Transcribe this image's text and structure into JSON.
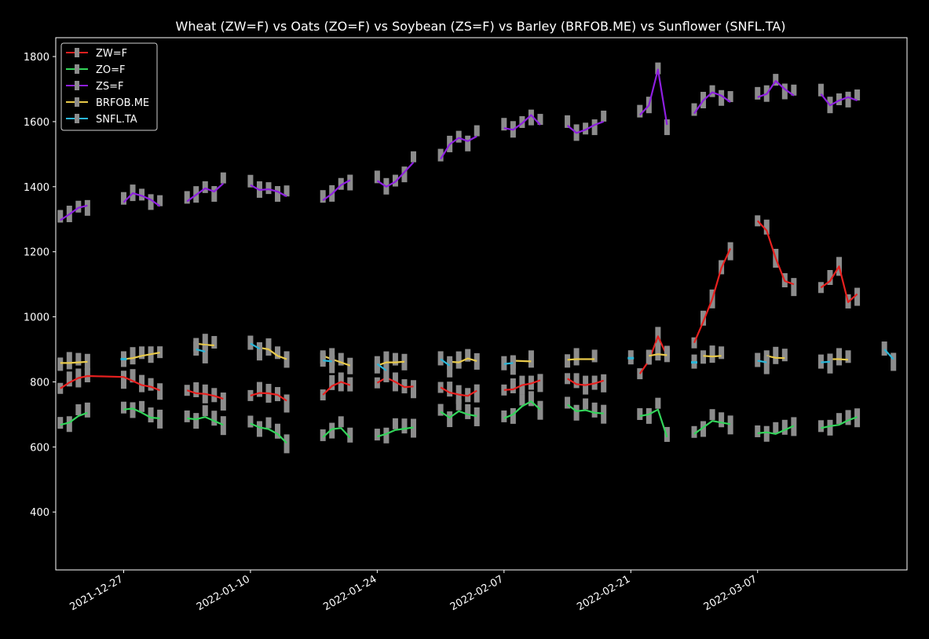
{
  "chart_data": {
    "type": "line",
    "title": "Wheat (ZW=F) vs Oats (ZO=F) vs Soybean (ZS=F) vs Barley (BRFOB.ME) vs Sunflower (SNFL.TA)",
    "xlabel": "",
    "ylabel": "",
    "ylim": [
      222,
      1858
    ],
    "y_ticks": [
      400,
      600,
      800,
      1000,
      1200,
      1400,
      1600,
      1800
    ],
    "x_ticks": [
      "2021-12-27",
      "2022-01-10",
      "2022-01-24",
      "2022-02-07",
      "2022-02-21",
      "2022-03-07"
    ],
    "legend_position": "top-left",
    "grid": false,
    "background": "#000000",
    "series": [
      {
        "name": "ZW=F",
        "color": "#e8201f",
        "points": [
          [
            "2021-12-20",
            780
          ],
          [
            "2021-12-21",
            798
          ],
          [
            "2021-12-22",
            812
          ],
          [
            "2021-12-23",
            818
          ],
          [
            "2021-12-27",
            815
          ],
          [
            "2021-12-28",
            803
          ],
          [
            "2021-12-29",
            790
          ],
          [
            "2021-12-30",
            785
          ],
          [
            "2021-12-31",
            774
          ],
          null,
          [
            "2022-01-03",
            774
          ],
          [
            "2022-01-04",
            765
          ],
          [
            "2022-01-05",
            763
          ],
          [
            "2022-01-06",
            757
          ],
          [
            "2022-01-07",
            748
          ],
          null,
          [
            "2022-01-10",
            758
          ],
          [
            "2022-01-11",
            766
          ],
          [
            "2022-01-12",
            765
          ],
          [
            "2022-01-13",
            760
          ],
          [
            "2022-01-14",
            742
          ],
          null,
          [
            "2022-01-18",
            760
          ],
          [
            "2022-01-19",
            787
          ],
          [
            "2022-01-20",
            800
          ],
          [
            "2022-01-21",
            790
          ],
          null,
          [
            "2022-01-24",
            797
          ],
          [
            "2022-01-25",
            813
          ],
          [
            "2022-01-26",
            800
          ],
          [
            "2022-01-27",
            784
          ],
          [
            "2022-01-28",
            786
          ],
          null,
          [
            "2022-01-31",
            783
          ],
          [
            "2022-02-01",
            767
          ],
          [
            "2022-02-02",
            761
          ],
          [
            "2022-02-03",
            757
          ],
          [
            "2022-02-04",
            773
          ],
          null,
          [
            "2022-02-07",
            775
          ],
          [
            "2022-02-08",
            777
          ],
          [
            "2022-02-09",
            790
          ],
          [
            "2022-02-10",
            795
          ],
          [
            "2022-02-11",
            805
          ],
          null,
          [
            "2022-02-14",
            810
          ],
          [
            "2022-02-15",
            793
          ],
          [
            "2022-02-16",
            790
          ],
          [
            "2022-02-17",
            795
          ],
          [
            "2022-02-18",
            804
          ],
          null,
          [
            "2022-02-22",
            825
          ],
          [
            "2022-02-23",
            865
          ],
          [
            "2022-02-24",
            940
          ],
          [
            "2022-02-25",
            880
          ],
          null,
          [
            "2022-02-28",
            920
          ],
          [
            "2022-03-01",
            985
          ],
          [
            "2022-03-02",
            1055
          ],
          [
            "2022-03-03",
            1150
          ],
          [
            "2022-03-04",
            1210
          ],
          null,
          [
            "2022-03-07",
            1295
          ],
          [
            "2022-03-08",
            1265
          ],
          [
            "2022-03-09",
            1180
          ],
          [
            "2022-03-10",
            1110
          ],
          [
            "2022-03-11",
            1100
          ],
          null,
          [
            "2022-03-14",
            1090
          ],
          [
            "2022-03-15",
            1110
          ],
          [
            "2022-03-16",
            1155
          ],
          [
            "2022-03-17",
            1045
          ],
          [
            "2022-03-18",
            1070
          ]
        ]
      },
      {
        "name": "ZO=F",
        "color": "#33d45a",
        "points": [
          [
            "2021-12-20",
            668
          ],
          [
            "2021-12-21",
            675
          ],
          [
            "2021-12-22",
            695
          ],
          [
            "2021-12-23",
            705
          ],
          null,
          [
            "2021-12-27",
            715
          ],
          [
            "2021-12-28",
            718
          ],
          [
            "2021-12-29",
            705
          ],
          [
            "2021-12-30",
            690
          ],
          [
            "2021-12-31",
            688
          ],
          null,
          [
            "2022-01-03",
            688
          ],
          [
            "2022-01-04",
            685
          ],
          [
            "2022-01-05",
            692
          ],
          [
            "2022-01-06",
            680
          ],
          [
            "2022-01-07",
            668
          ],
          null,
          [
            "2022-01-10",
            672
          ],
          [
            "2022-01-11",
            660
          ],
          [
            "2022-01-12",
            655
          ],
          [
            "2022-01-13",
            640
          ],
          [
            "2022-01-14",
            612
          ],
          null,
          [
            "2022-01-18",
            630
          ],
          [
            "2022-01-19",
            655
          ],
          [
            "2022-01-20",
            658
          ],
          [
            "2022-01-21",
            628
          ],
          null,
          [
            "2022-01-24",
            632
          ],
          [
            "2022-01-25",
            640
          ],
          [
            "2022-01-26",
            652
          ],
          [
            "2022-01-27",
            656
          ],
          [
            "2022-01-28",
            660
          ],
          null,
          [
            "2022-01-31",
            708
          ],
          [
            "2022-02-01",
            690
          ],
          [
            "2022-02-02",
            710
          ],
          [
            "2022-02-03",
            700
          ],
          [
            "2022-02-04",
            695
          ],
          null,
          [
            "2022-02-07",
            688
          ],
          [
            "2022-02-08",
            700
          ],
          [
            "2022-02-09",
            725
          ],
          [
            "2022-02-10",
            740
          ],
          [
            "2022-02-11",
            715
          ],
          null,
          [
            "2022-02-14",
            730
          ],
          [
            "2022-02-15",
            710
          ],
          [
            "2022-02-16",
            713
          ],
          [
            "2022-02-17",
            705
          ],
          [
            "2022-02-18",
            703
          ],
          null,
          [
            "2022-02-22",
            695
          ],
          [
            "2022-02-23",
            700
          ],
          [
            "2022-02-24",
            715
          ],
          [
            "2022-02-25",
            630
          ],
          null,
          [
            "2022-02-28",
            640
          ],
          [
            "2022-03-01",
            660
          ],
          [
            "2022-03-02",
            680
          ],
          [
            "2022-03-03",
            675
          ],
          [
            "2022-03-04",
            670
          ],
          null,
          [
            "2022-03-07",
            642
          ],
          [
            "2022-03-08",
            645
          ],
          [
            "2022-03-09",
            640
          ],
          [
            "2022-03-10",
            652
          ],
          [
            "2022-03-11",
            665
          ],
          null,
          [
            "2022-03-14",
            658
          ],
          [
            "2022-03-15",
            664
          ],
          [
            "2022-03-16",
            668
          ],
          [
            "2022-03-17",
            682
          ],
          [
            "2022-03-18",
            692
          ]
        ]
      },
      {
        "name": "ZS=F",
        "color": "#8e1fe0",
        "points": [
          [
            "2021-12-20",
            1297
          ],
          [
            "2021-12-21",
            1315
          ],
          [
            "2021-12-22",
            1335
          ],
          [
            "2021-12-23",
            1342
          ],
          null,
          [
            "2021-12-27",
            1352
          ],
          [
            "2021-12-28",
            1380
          ],
          [
            "2021-12-29",
            1372
          ],
          [
            "2021-12-30",
            1360
          ],
          [
            "2021-12-31",
            1340
          ],
          null,
          [
            "2022-01-03",
            1355
          ],
          [
            "2022-01-04",
            1375
          ],
          [
            "2022-01-05",
            1395
          ],
          [
            "2022-01-06",
            1385
          ],
          [
            "2022-01-07",
            1410
          ],
          null,
          [
            "2022-01-10",
            1405
          ],
          [
            "2022-01-11",
            1390
          ],
          [
            "2022-01-12",
            1392
          ],
          [
            "2022-01-13",
            1385
          ],
          [
            "2022-01-14",
            1370
          ],
          null,
          [
            "2022-01-18",
            1358
          ],
          [
            "2022-01-19",
            1378
          ],
          [
            "2022-01-20",
            1405
          ],
          [
            "2022-01-21",
            1420
          ],
          null,
          [
            "2022-01-24",
            1418
          ],
          [
            "2022-01-25",
            1400
          ],
          [
            "2022-01-26",
            1415
          ],
          [
            "2022-01-27",
            1445
          ],
          [
            "2022-01-28",
            1475
          ],
          null,
          [
            "2022-01-31",
            1485
          ],
          [
            "2022-02-01",
            1530
          ],
          [
            "2022-02-02",
            1550
          ],
          [
            "2022-02-03",
            1540
          ],
          [
            "2022-02-04",
            1555
          ],
          null,
          [
            "2022-02-07",
            1580
          ],
          [
            "2022-02-08",
            1575
          ],
          [
            "2022-02-09",
            1595
          ],
          [
            "2022-02-10",
            1620
          ],
          [
            "2022-02-11",
            1590
          ],
          null,
          [
            "2022-02-14",
            1588
          ],
          [
            "2022-02-15",
            1565
          ],
          [
            "2022-02-16",
            1575
          ],
          [
            "2022-02-17",
            1590
          ],
          [
            "2022-02-18",
            1600
          ],
          null,
          [
            "2022-02-22",
            1620
          ],
          [
            "2022-02-23",
            1650
          ],
          [
            "2022-02-24",
            1760
          ],
          [
            "2022-02-25",
            1590
          ],
          null,
          [
            "2022-02-28",
            1625
          ],
          [
            "2022-03-01",
            1665
          ],
          [
            "2022-03-02",
            1690
          ],
          [
            "2022-03-03",
            1680
          ],
          [
            "2022-03-04",
            1660
          ],
          null,
          [
            "2022-03-07",
            1675
          ],
          [
            "2022-03-08",
            1685
          ],
          [
            "2022-03-09",
            1725
          ],
          [
            "2022-03-10",
            1700
          ],
          [
            "2022-03-11",
            1680
          ],
          null,
          [
            "2022-03-14",
            1685
          ],
          [
            "2022-03-15",
            1650
          ],
          [
            "2022-03-16",
            1665
          ],
          [
            "2022-03-17",
            1675
          ],
          [
            "2022-03-18",
            1665
          ]
        ]
      },
      {
        "name": "BRFOB.ME",
        "color": "#e8c94a",
        "points": [
          [
            "2021-12-20",
            858
          ],
          [
            "2021-12-21",
            858
          ],
          [
            "2021-12-22",
            860
          ],
          [
            "2021-12-23",
            862
          ],
          null,
          [
            "2021-12-27",
            870
          ],
          [
            "2021-12-28",
            873
          ],
          [
            "2021-12-29",
            880
          ],
          [
            "2021-12-30",
            885
          ],
          [
            "2021-12-31",
            890
          ],
          null,
          [
            "2022-01-04",
            918
          ],
          [
            "2022-01-05",
            914
          ],
          [
            "2022-01-06",
            912
          ],
          null,
          [
            "2022-01-11",
            905
          ],
          [
            "2022-01-12",
            900
          ],
          [
            "2022-01-13",
            880
          ],
          [
            "2022-01-14",
            870
          ],
          null,
          [
            "2022-01-18",
            880
          ],
          [
            "2022-01-19",
            870
          ],
          [
            "2022-01-20",
            860
          ],
          [
            "2022-01-21",
            850
          ],
          null,
          [
            "2022-01-24",
            850
          ],
          [
            "2022-01-25",
            860
          ],
          [
            "2022-01-26",
            860
          ],
          [
            "2022-01-27",
            862
          ],
          null,
          [
            "2022-02-01",
            862
          ],
          [
            "2022-02-02",
            860
          ],
          [
            "2022-02-03",
            872
          ],
          [
            "2022-02-04",
            864
          ],
          null,
          [
            "2022-02-08",
            865
          ],
          [
            "2022-02-10",
            863
          ],
          null,
          [
            "2022-02-14",
            868
          ],
          [
            "2022-02-15",
            870
          ],
          [
            "2022-02-17",
            870
          ],
          null,
          [
            "2022-02-23",
            880
          ],
          [
            "2022-02-24",
            885
          ],
          [
            "2022-02-25",
            882
          ],
          null,
          [
            "2022-03-01",
            880
          ],
          [
            "2022-03-02",
            878
          ],
          [
            "2022-03-03",
            880
          ],
          null,
          [
            "2022-03-08",
            880
          ],
          [
            "2022-03-09",
            874
          ],
          [
            "2022-03-10",
            873
          ],
          null,
          [
            "2022-03-15",
            870
          ],
          [
            "2022-03-16",
            870
          ],
          [
            "2022-03-17",
            868
          ]
        ]
      },
      {
        "name": "SNFL.TA",
        "color": "#2ab7d9",
        "points": [
          [
            "2021-12-27",
            870
          ],
          null,
          [
            "2022-01-04",
            900
          ],
          [
            "2022-01-05",
            893
          ],
          null,
          [
            "2022-01-10",
            918
          ],
          [
            "2022-01-11",
            902
          ],
          null,
          [
            "2022-01-18",
            866
          ],
          [
            "2022-01-19",
            863
          ],
          null,
          [
            "2022-01-24",
            855
          ],
          [
            "2022-01-25",
            835
          ],
          null,
          [
            "2022-01-31",
            870
          ],
          [
            "2022-02-01",
            850
          ],
          null,
          [
            "2022-02-07",
            855
          ],
          [
            "2022-02-08",
            858
          ],
          null,
          [
            "2022-02-21",
            873
          ],
          null,
          [
            "2022-02-28",
            860
          ],
          null,
          [
            "2022-03-07",
            865
          ],
          [
            "2022-03-08",
            860
          ],
          null,
          [
            "2022-03-14",
            860
          ],
          [
            "2022-03-15",
            862
          ],
          null,
          [
            "2022-03-21",
            900
          ],
          [
            "2022-03-22",
            870
          ]
        ]
      }
    ]
  }
}
